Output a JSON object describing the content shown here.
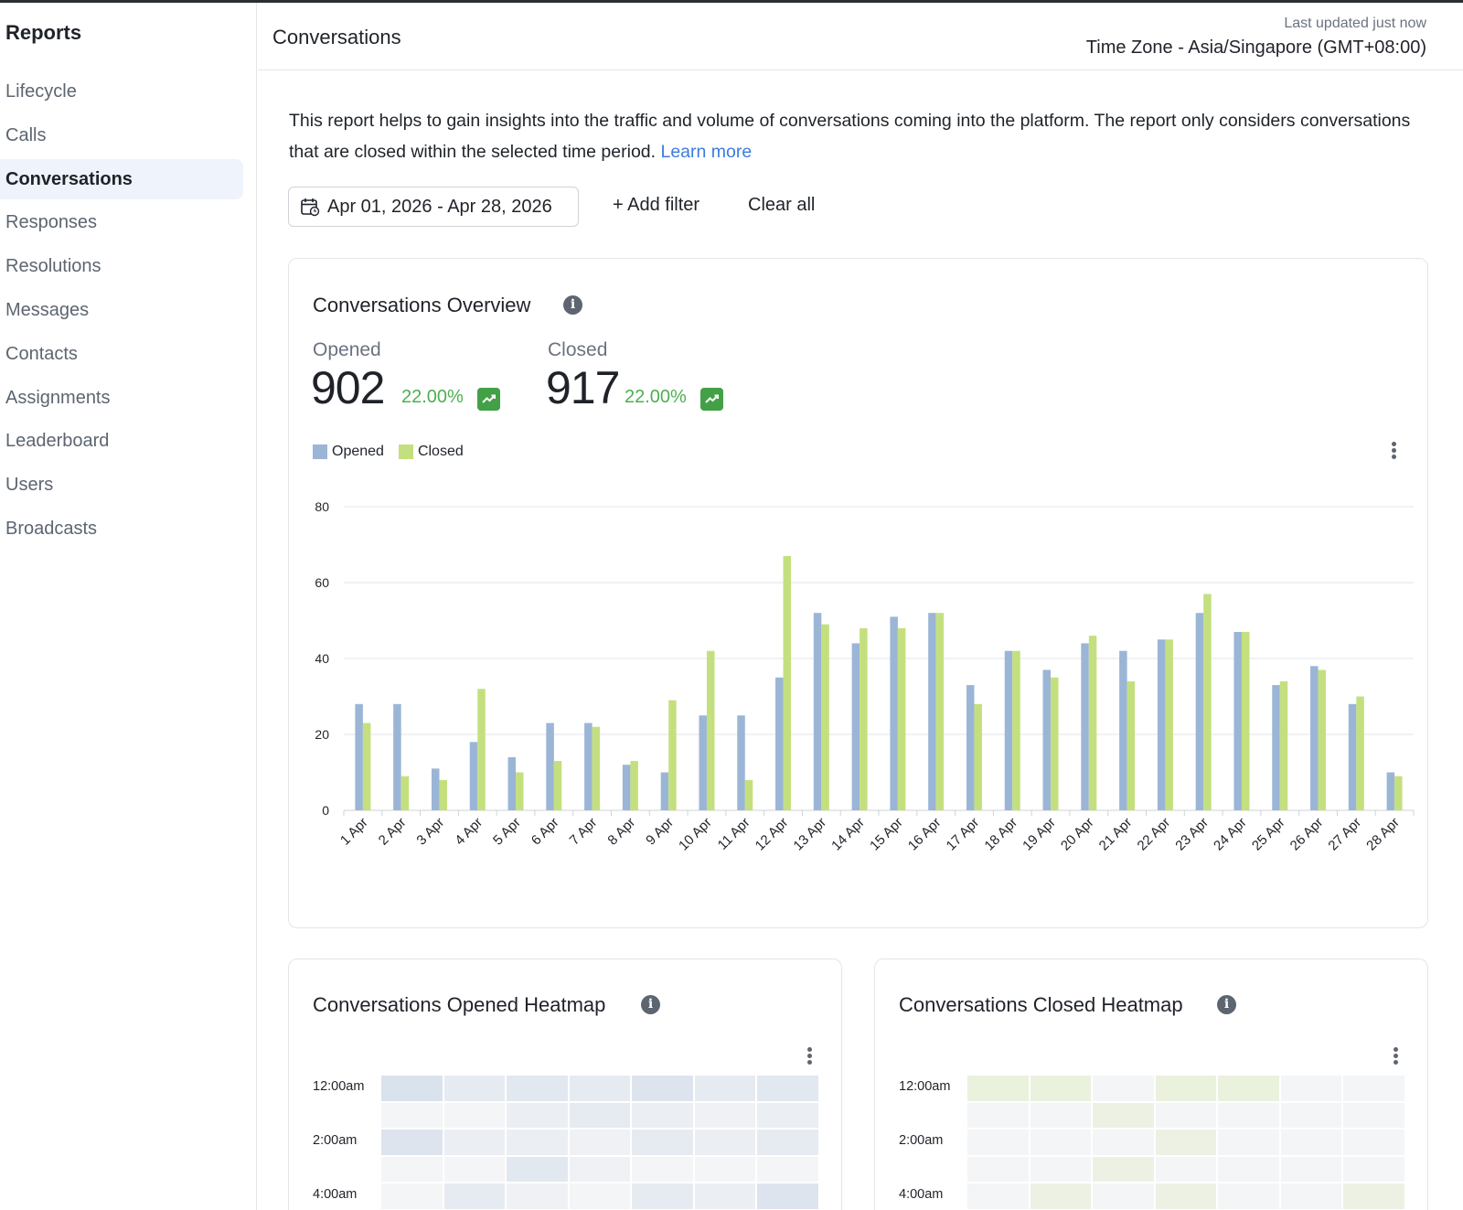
{
  "sidebar": {
    "title": "Reports",
    "items": [
      {
        "label": "Lifecycle",
        "active": false
      },
      {
        "label": "Calls",
        "active": false
      },
      {
        "label": "Conversations",
        "active": true
      },
      {
        "label": "Responses",
        "active": false
      },
      {
        "label": "Resolutions",
        "active": false
      },
      {
        "label": "Messages",
        "active": false
      },
      {
        "label": "Contacts",
        "active": false
      },
      {
        "label": "Assignments",
        "active": false
      },
      {
        "label": "Leaderboard",
        "active": false
      },
      {
        "label": "Users",
        "active": false
      },
      {
        "label": "Broadcasts",
        "active": false
      }
    ]
  },
  "header": {
    "title": "Conversations",
    "last_updated": "Last updated just now",
    "timezone": "Time Zone - Asia/Singapore (GMT+08:00)"
  },
  "description": {
    "text": "This report helps to gain insights into the traffic and volume of conversations coming into the platform. The report only considers conversations that are closed within the selected time period.",
    "link": "Learn more"
  },
  "filters": {
    "date_range": "Apr 01, 2026 - Apr 28, 2026",
    "add_filter": "+ Add filter",
    "clear_all": "Clear all"
  },
  "overview": {
    "title": "Conversations Overview",
    "opened_label": "Opened",
    "opened_value": "902",
    "opened_pct": "22.00%",
    "closed_label": "Closed",
    "closed_value": "917",
    "closed_pct": "22.00%"
  },
  "colors": {
    "opened": "#9bb5d6",
    "closed": "#c4e07e",
    "grid": "#e3e5e8",
    "trend": "#43a047"
  },
  "chart_data": {
    "type": "bar",
    "categories": [
      "1 Apr",
      "2 Apr",
      "3 Apr",
      "4 Apr",
      "5 Apr",
      "6 Apr",
      "7 Apr",
      "8 Apr",
      "9 Apr",
      "10 Apr",
      "11 Apr",
      "12 Apr",
      "13 Apr",
      "14 Apr",
      "15 Apr",
      "16 Apr",
      "17 Apr",
      "18 Apr",
      "19 Apr",
      "20 Apr",
      "21 Apr",
      "22 Apr",
      "23 Apr",
      "24 Apr",
      "25 Apr",
      "26 Apr",
      "27 Apr",
      "28 Apr"
    ],
    "series": [
      {
        "name": "Opened",
        "values": [
          28,
          28,
          11,
          18,
          14,
          23,
          23,
          12,
          10,
          25,
          25,
          35,
          52,
          44,
          51,
          52,
          33,
          42,
          37,
          44,
          42,
          45,
          52,
          47,
          33,
          38,
          28,
          10
        ]
      },
      {
        "name": "Closed",
        "values": [
          23,
          9,
          8,
          32,
          10,
          13,
          22,
          13,
          29,
          42,
          8,
          67,
          49,
          48,
          48,
          52,
          28,
          42,
          35,
          46,
          34,
          45,
          57,
          47,
          34,
          37,
          30,
          9
        ]
      }
    ],
    "yticks": [
      0,
      20,
      40,
      60,
      80
    ],
    "ylim": [
      0,
      80
    ],
    "legend": "top-left"
  },
  "heatmaps": {
    "opened_title": "Conversations Opened Heatmap",
    "closed_title": "Conversations Closed Heatmap",
    "row_labels": [
      "12:00am",
      "2:00am",
      "4:00am"
    ],
    "opened_color": "#9bb5d6",
    "closed_color": "#c4e07e",
    "opened_cells": [
      [
        0.3,
        0.15,
        0.2,
        0.15,
        0.25,
        0.15,
        0.2
      ],
      [
        0,
        0,
        0.1,
        0.15,
        0.1,
        0.05,
        0.1
      ],
      [
        0.25,
        0.1,
        0.1,
        0.05,
        0.15,
        0.1,
        0.15
      ],
      [
        0,
        0,
        0.2,
        0.05,
        0,
        0,
        0
      ],
      [
        0,
        0.15,
        0.05,
        0,
        0.15,
        0.1,
        0.25
      ]
    ],
    "closed_cells": [
      [
        0.2,
        0.2,
        0,
        0.2,
        0.2,
        0,
        0
      ],
      [
        0,
        0,
        0.15,
        0,
        0,
        0,
        0
      ],
      [
        0,
        0,
        0,
        0.15,
        0,
        0,
        0
      ],
      [
        0,
        0,
        0.15,
        0,
        0,
        0,
        0
      ],
      [
        0,
        0.15,
        0,
        0.15,
        0,
        0,
        0.15
      ]
    ]
  }
}
